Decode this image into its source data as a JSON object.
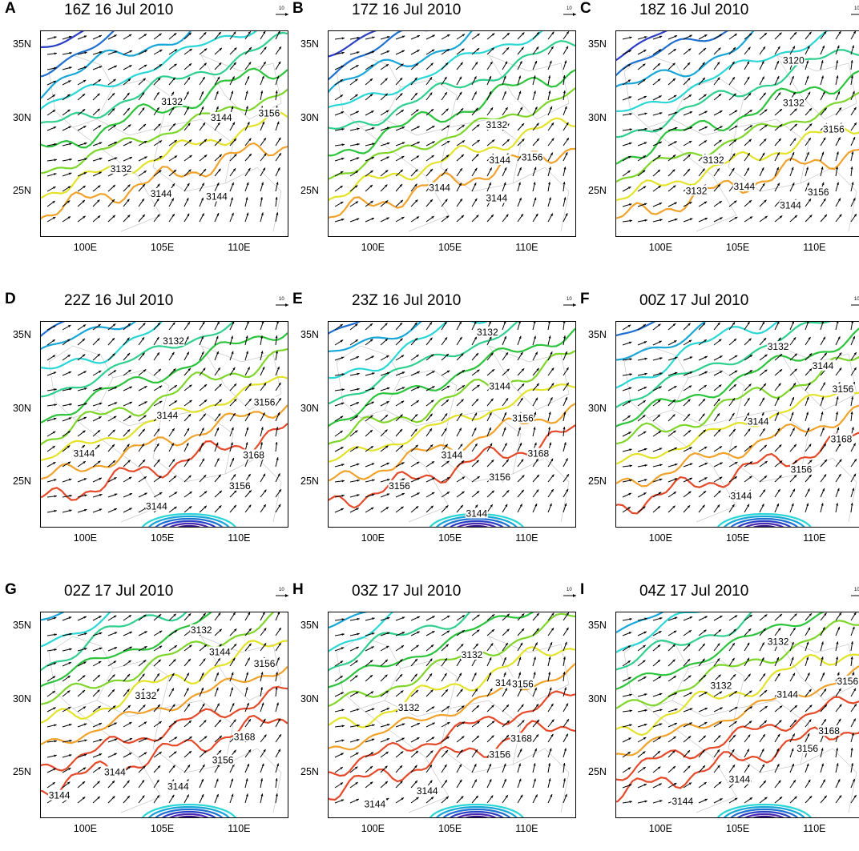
{
  "chart_data": {
    "type": "contour",
    "x_tick_labels": [
      "100E",
      "105E",
      "110E"
    ],
    "x_ticks": [
      100,
      105,
      110
    ],
    "y_tick_labels": [
      "35N",
      "30N",
      "25N"
    ],
    "y_ticks": [
      35,
      30,
      25
    ],
    "xlim": [
      97,
      113
    ],
    "ylim": [
      22,
      36
    ],
    "reference_vector_label": "10",
    "panels": [
      {
        "letter": "A",
        "title": "16Z 16 Jul 2010",
        "contour_labels": [
          {
            "text": "3132",
            "lon": 102.2,
            "lat": 26.6
          },
          {
            "text": "3132",
            "lon": 105.5,
            "lat": 31.2
          },
          {
            "text": "3144",
            "lon": 104.8,
            "lat": 24.9
          },
          {
            "text": "3144",
            "lon": 108.4,
            "lat": 24.7
          },
          {
            "text": "3144",
            "lon": 108.7,
            "lat": 30.1
          },
          {
            "text": "3156",
            "lon": 111.8,
            "lat": 30.4
          }
        ]
      },
      {
        "letter": "B",
        "title": "17Z 16 Jul 2010",
        "contour_labels": [
          {
            "text": "3132",
            "lon": 107.9,
            "lat": 29.6
          },
          {
            "text": "3144",
            "lon": 108.1,
            "lat": 27.2
          },
          {
            "text": "3144",
            "lon": 104.2,
            "lat": 25.3
          },
          {
            "text": "3144",
            "lon": 107.9,
            "lat": 24.6
          },
          {
            "text": "3156",
            "lon": 110.2,
            "lat": 27.4
          }
        ]
      },
      {
        "letter": "C",
        "title": "18Z 16 Jul 2010",
        "contour_labels": [
          {
            "text": "3120",
            "lon": 108.5,
            "lat": 34.0
          },
          {
            "text": "3132",
            "lon": 108.5,
            "lat": 31.1
          },
          {
            "text": "3132",
            "lon": 103.3,
            "lat": 27.2
          },
          {
            "text": "3132",
            "lon": 102.2,
            "lat": 25.1
          },
          {
            "text": "3144",
            "lon": 105.3,
            "lat": 25.4
          },
          {
            "text": "3144",
            "lon": 108.3,
            "lat": 24.1
          },
          {
            "text": "3156",
            "lon": 111.1,
            "lat": 29.3
          },
          {
            "text": "3156",
            "lon": 110.1,
            "lat": 25.0
          }
        ]
      },
      {
        "letter": "D",
        "title": "22Z 16 Jul 2010",
        "contour_labels": [
          {
            "text": "3132",
            "lon": 105.6,
            "lat": 34.7
          },
          {
            "text": "3144",
            "lon": 105.2,
            "lat": 29.6
          },
          {
            "text": "3144",
            "lon": 99.8,
            "lat": 27.0
          },
          {
            "text": "3144",
            "lon": 104.5,
            "lat": 23.4
          },
          {
            "text": "3156",
            "lon": 109.9,
            "lat": 24.8
          },
          {
            "text": "3156",
            "lon": 111.5,
            "lat": 30.5
          },
          {
            "text": "3168",
            "lon": 110.8,
            "lat": 26.9
          }
        ]
      },
      {
        "letter": "E",
        "title": "23Z 16 Jul 2010",
        "contour_labels": [
          {
            "text": "3132",
            "lon": 107.3,
            "lat": 35.3
          },
          {
            "text": "3144",
            "lon": 108.1,
            "lat": 31.6
          },
          {
            "text": "3144",
            "lon": 105.0,
            "lat": 26.9
          },
          {
            "text": "3144",
            "lon": 106.6,
            "lat": 22.9
          },
          {
            "text": "3156",
            "lon": 101.6,
            "lat": 24.8
          },
          {
            "text": "3156",
            "lon": 108.1,
            "lat": 25.4
          },
          {
            "text": "3156",
            "lon": 109.6,
            "lat": 29.4
          },
          {
            "text": "3168",
            "lon": 110.6,
            "lat": 27.0
          }
        ]
      },
      {
        "letter": "F",
        "title": "00Z 17 Jul 2010",
        "contour_labels": [
          {
            "text": "3132",
            "lon": 107.5,
            "lat": 34.3
          },
          {
            "text": "3144",
            "lon": 110.4,
            "lat": 33.0
          },
          {
            "text": "3144",
            "lon": 106.2,
            "lat": 29.2
          },
          {
            "text": "3144",
            "lon": 105.1,
            "lat": 24.1
          },
          {
            "text": "3156",
            "lon": 109.0,
            "lat": 25.9
          },
          {
            "text": "3156",
            "lon": 111.7,
            "lat": 31.4
          },
          {
            "text": "3168",
            "lon": 111.6,
            "lat": 28.0
          }
        ]
      },
      {
        "letter": "G",
        "title": "02Z 17 Jul 2010",
        "contour_labels": [
          {
            "text": "3132",
            "lon": 107.4,
            "lat": 34.8
          },
          {
            "text": "3132",
            "lon": 103.8,
            "lat": 30.3
          },
          {
            "text": "3144",
            "lon": 108.6,
            "lat": 33.3
          },
          {
            "text": "3144",
            "lon": 101.8,
            "lat": 25.1
          },
          {
            "text": "3144",
            "lon": 98.2,
            "lat": 23.5
          },
          {
            "text": "3144",
            "lon": 105.9,
            "lat": 24.1
          },
          {
            "text": "3156",
            "lon": 111.5,
            "lat": 32.5
          },
          {
            "text": "3156",
            "lon": 108.8,
            "lat": 25.9
          },
          {
            "text": "3168",
            "lon": 110.2,
            "lat": 27.5
          }
        ]
      },
      {
        "letter": "H",
        "title": "03Z 17 Jul 2010",
        "contour_labels": [
          {
            "text": "3132",
            "lon": 106.3,
            "lat": 33.1
          },
          {
            "text": "3132",
            "lon": 102.2,
            "lat": 29.5
          },
          {
            "text": "3144",
            "lon": 108.5,
            "lat": 31.2
          },
          {
            "text": "3144",
            "lon": 103.4,
            "lat": 23.8
          },
          {
            "text": "3144",
            "lon": 100.0,
            "lat": 22.9
          },
          {
            "text": "3156",
            "lon": 109.6,
            "lat": 31.1
          },
          {
            "text": "3156",
            "lon": 108.1,
            "lat": 26.3
          },
          {
            "text": "3168",
            "lon": 109.5,
            "lat": 27.4
          }
        ]
      },
      {
        "letter": "I",
        "title": "04Z 17 Jul 2010",
        "contour_labels": [
          {
            "text": "3132",
            "lon": 107.5,
            "lat": 34.0
          },
          {
            "text": "3132",
            "lon": 103.8,
            "lat": 31.0
          },
          {
            "text": "3144",
            "lon": 108.1,
            "lat": 30.4
          },
          {
            "text": "3144",
            "lon": 105.0,
            "lat": 24.6
          },
          {
            "text": "3144",
            "lon": 101.3,
            "lat": 23.1
          },
          {
            "text": "3156",
            "lon": 109.4,
            "lat": 26.7
          },
          {
            "text": "3156",
            "lon": 112.0,
            "lat": 31.3
          },
          {
            "text": "3168",
            "lon": 110.8,
            "lat": 27.9
          }
        ]
      }
    ]
  }
}
